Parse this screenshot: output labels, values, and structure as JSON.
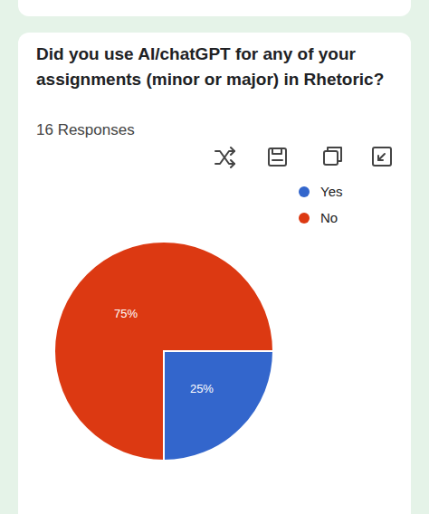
{
  "chart_data": {
    "type": "pie",
    "title": "Did you use AI/chatGPT for any of your assignments (minor or major) in Rhetoric?",
    "subtitle": "16 Responses",
    "categories": [
      "Yes",
      "No"
    ],
    "values": [
      25,
      75
    ],
    "value_labels": [
      "25%",
      "75%"
    ],
    "colors": [
      "#3366cc",
      "#dc3912"
    ],
    "data_labels": true,
    "legend": "right"
  }
}
